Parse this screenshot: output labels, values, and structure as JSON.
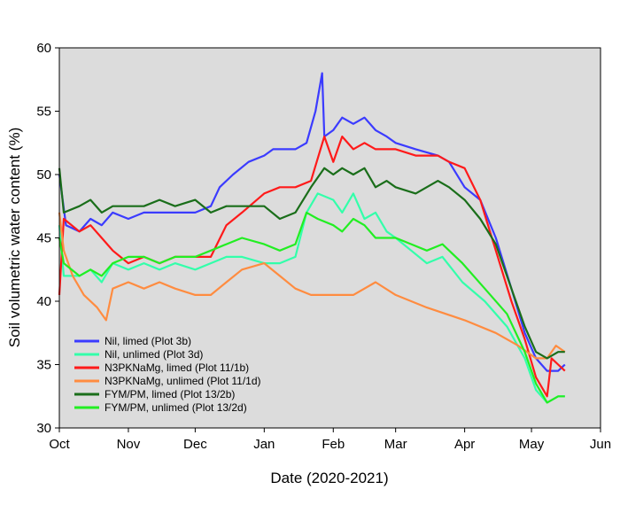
{
  "chart_data": {
    "type": "line",
    "title": "",
    "xlabel": "Date (2020-2021)",
    "ylabel": "Soil volumetric water content (%)",
    "ylim": [
      30,
      60
    ],
    "yticks": [
      "30",
      "35",
      "40",
      "45",
      "50",
      "55",
      "60"
    ],
    "xlim": [
      "2020-10-01",
      "2021-06-01"
    ],
    "xticks": [
      "Oct",
      "Nov",
      "Dec",
      "Jan",
      "Feb",
      "Mar",
      "Apr",
      "May",
      "Jun"
    ],
    "xtick_dates": [
      "2020-10-01",
      "2020-11-01",
      "2020-12-01",
      "2021-01-01",
      "2021-02-01",
      "2021-03-01",
      "2021-04-01",
      "2021-05-01",
      "2021-06-01"
    ],
    "grid": false,
    "background": "#dcdcdc",
    "legend_position": "bottom-left",
    "series": [
      {
        "name": "Nil, limed (Plot 3b)",
        "color": "#3b3bff",
        "points": [
          [
            "2020-10-01",
            50.0
          ],
          [
            "2020-10-04",
            46.0
          ],
          [
            "2020-10-10",
            45.5
          ],
          [
            "2020-10-15",
            46.5
          ],
          [
            "2020-10-20",
            46.0
          ],
          [
            "2020-10-25",
            47.0
          ],
          [
            "2020-11-01",
            46.5
          ],
          [
            "2020-11-08",
            47.0
          ],
          [
            "2020-11-15",
            47.0
          ],
          [
            "2020-11-22",
            47.0
          ],
          [
            "2020-12-01",
            47.0
          ],
          [
            "2020-12-08",
            47.5
          ],
          [
            "2020-12-12",
            49.0
          ],
          [
            "2020-12-18",
            50.0
          ],
          [
            "2020-12-25",
            51.0
          ],
          [
            "2021-01-01",
            51.5
          ],
          [
            "2021-01-05",
            52.0
          ],
          [
            "2021-01-10",
            52.0
          ],
          [
            "2021-01-15",
            52.0
          ],
          [
            "2021-01-20",
            52.5
          ],
          [
            "2021-01-24",
            55.0
          ],
          [
            "2021-01-27",
            58.0
          ],
          [
            "2021-01-28",
            53.0
          ],
          [
            "2021-02-01",
            53.5
          ],
          [
            "2021-02-05",
            54.5
          ],
          [
            "2021-02-10",
            54.0
          ],
          [
            "2021-02-15",
            54.5
          ],
          [
            "2021-02-20",
            53.5
          ],
          [
            "2021-02-25",
            53.0
          ],
          [
            "2021-03-01",
            52.5
          ],
          [
            "2021-03-10",
            52.0
          ],
          [
            "2021-03-20",
            51.5
          ],
          [
            "2021-03-25",
            51.0
          ],
          [
            "2021-04-01",
            49.0
          ],
          [
            "2021-04-08",
            48.0
          ],
          [
            "2021-04-15",
            45.0
          ],
          [
            "2021-04-22",
            41.0
          ],
          [
            "2021-04-28",
            37.5
          ],
          [
            "2021-05-03",
            35.5
          ],
          [
            "2021-05-08",
            34.5
          ],
          [
            "2021-05-13",
            34.5
          ],
          [
            "2021-05-16",
            35.0
          ]
        ]
      },
      {
        "name": "Nil, unlimed (Plot 3d)",
        "color": "#33ffaa",
        "points": [
          [
            "2020-10-01",
            46.0
          ],
          [
            "2020-10-03",
            42.0
          ],
          [
            "2020-10-10",
            42.0
          ],
          [
            "2020-10-15",
            42.5
          ],
          [
            "2020-10-20",
            41.5
          ],
          [
            "2020-10-25",
            43.0
          ],
          [
            "2020-11-01",
            42.5
          ],
          [
            "2020-11-08",
            43.0
          ],
          [
            "2020-11-15",
            42.5
          ],
          [
            "2020-11-22",
            43.0
          ],
          [
            "2020-12-01",
            42.5
          ],
          [
            "2020-12-08",
            43.0
          ],
          [
            "2020-12-15",
            43.5
          ],
          [
            "2020-12-22",
            43.5
          ],
          [
            "2021-01-01",
            43.0
          ],
          [
            "2021-01-08",
            43.0
          ],
          [
            "2021-01-15",
            43.5
          ],
          [
            "2021-01-20",
            47.0
          ],
          [
            "2021-01-25",
            48.5
          ],
          [
            "2021-02-01",
            48.0
          ],
          [
            "2021-02-05",
            47.0
          ],
          [
            "2021-02-10",
            48.5
          ],
          [
            "2021-02-15",
            46.5
          ],
          [
            "2021-02-20",
            47.0
          ],
          [
            "2021-02-25",
            45.5
          ],
          [
            "2021-03-01",
            45.0
          ],
          [
            "2021-03-08",
            44.0
          ],
          [
            "2021-03-15",
            43.0
          ],
          [
            "2021-03-22",
            43.5
          ],
          [
            "2021-03-31",
            41.5
          ],
          [
            "2021-04-10",
            40.0
          ],
          [
            "2021-04-20",
            38.0
          ],
          [
            "2021-04-28",
            35.5
          ],
          [
            "2021-05-03",
            33.0
          ],
          [
            "2021-05-08",
            32.0
          ],
          [
            "2021-05-13",
            32.5
          ],
          [
            "2021-05-16",
            32.5
          ]
        ]
      },
      {
        "name": "N3PKNaMg, limed (Plot 11/1b)",
        "color": "#ff1a1a",
        "points": [
          [
            "2020-10-01",
            40.5
          ],
          [
            "2020-10-03",
            46.5
          ],
          [
            "2020-10-10",
            45.5
          ],
          [
            "2020-10-15",
            46.0
          ],
          [
            "2020-10-20",
            45.0
          ],
          [
            "2020-10-25",
            44.0
          ],
          [
            "2020-11-01",
            43.0
          ],
          [
            "2020-11-08",
            43.5
          ],
          [
            "2020-11-15",
            43.0
          ],
          [
            "2020-11-22",
            43.5
          ],
          [
            "2020-12-01",
            43.5
          ],
          [
            "2020-12-08",
            43.5
          ],
          [
            "2020-12-15",
            46.0
          ],
          [
            "2020-12-22",
            47.0
          ],
          [
            "2021-01-01",
            48.5
          ],
          [
            "2021-01-08",
            49.0
          ],
          [
            "2021-01-15",
            49.0
          ],
          [
            "2021-01-22",
            49.5
          ],
          [
            "2021-01-28",
            53.0
          ],
          [
            "2021-02-01",
            51.0
          ],
          [
            "2021-02-05",
            53.0
          ],
          [
            "2021-02-10",
            52.0
          ],
          [
            "2021-02-15",
            52.5
          ],
          [
            "2021-02-20",
            52.0
          ],
          [
            "2021-02-25",
            52.0
          ],
          [
            "2021-03-01",
            52.0
          ],
          [
            "2021-03-10",
            51.5
          ],
          [
            "2021-03-20",
            51.5
          ],
          [
            "2021-03-25",
            51.0
          ],
          [
            "2021-04-01",
            50.5
          ],
          [
            "2021-04-08",
            48.0
          ],
          [
            "2021-04-15",
            44.0
          ],
          [
            "2021-04-22",
            40.0
          ],
          [
            "2021-04-28",
            37.0
          ],
          [
            "2021-05-03",
            34.0
          ],
          [
            "2021-05-08",
            32.5
          ],
          [
            "2021-05-10",
            35.5
          ],
          [
            "2021-05-13",
            35.0
          ],
          [
            "2021-05-16",
            34.5
          ]
        ]
      },
      {
        "name": "N3PKNaMg, unlimed (Plot 11/1d)",
        "color": "#ff8c40",
        "points": [
          [
            "2020-10-01",
            47.0
          ],
          [
            "2020-10-03",
            44.0
          ],
          [
            "2020-10-07",
            42.0
          ],
          [
            "2020-10-12",
            40.5
          ],
          [
            "2020-10-18",
            39.5
          ],
          [
            "2020-10-22",
            38.5
          ],
          [
            "2020-10-25",
            41.0
          ],
          [
            "2020-11-01",
            41.5
          ],
          [
            "2020-11-08",
            41.0
          ],
          [
            "2020-11-15",
            41.5
          ],
          [
            "2020-11-22",
            41.0
          ],
          [
            "2020-12-01",
            40.5
          ],
          [
            "2020-12-08",
            40.5
          ],
          [
            "2020-12-15",
            41.5
          ],
          [
            "2020-12-22",
            42.5
          ],
          [
            "2021-01-01",
            43.0
          ],
          [
            "2021-01-08",
            42.0
          ],
          [
            "2021-01-15",
            41.0
          ],
          [
            "2021-01-22",
            40.5
          ],
          [
            "2021-02-01",
            40.5
          ],
          [
            "2021-02-10",
            40.5
          ],
          [
            "2021-02-20",
            41.5
          ],
          [
            "2021-03-01",
            40.5
          ],
          [
            "2021-03-15",
            39.5
          ],
          [
            "2021-04-01",
            38.5
          ],
          [
            "2021-04-15",
            37.5
          ],
          [
            "2021-04-25",
            36.5
          ],
          [
            "2021-05-03",
            35.5
          ],
          [
            "2021-05-08",
            35.5
          ],
          [
            "2021-05-12",
            36.5
          ],
          [
            "2021-05-16",
            36.0
          ]
        ]
      },
      {
        "name": "FYM/PM, limed (Plot 13/2b)",
        "color": "#1a6e1a",
        "points": [
          [
            "2020-10-01",
            50.5
          ],
          [
            "2020-10-03",
            47.0
          ],
          [
            "2020-10-10",
            47.5
          ],
          [
            "2020-10-15",
            48.0
          ],
          [
            "2020-10-20",
            47.0
          ],
          [
            "2020-10-25",
            47.5
          ],
          [
            "2020-11-01",
            47.5
          ],
          [
            "2020-11-08",
            47.5
          ],
          [
            "2020-11-15",
            48.0
          ],
          [
            "2020-11-22",
            47.5
          ],
          [
            "2020-12-01",
            48.0
          ],
          [
            "2020-12-08",
            47.0
          ],
          [
            "2020-12-15",
            47.5
          ],
          [
            "2020-12-22",
            47.5
          ],
          [
            "2021-01-01",
            47.5
          ],
          [
            "2021-01-08",
            46.5
          ],
          [
            "2021-01-15",
            47.0
          ],
          [
            "2021-01-22",
            49.0
          ],
          [
            "2021-01-28",
            50.5
          ],
          [
            "2021-02-01",
            50.0
          ],
          [
            "2021-02-05",
            50.5
          ],
          [
            "2021-02-10",
            50.0
          ],
          [
            "2021-02-15",
            50.5
          ],
          [
            "2021-02-20",
            49.0
          ],
          [
            "2021-02-25",
            49.5
          ],
          [
            "2021-03-01",
            49.0
          ],
          [
            "2021-03-10",
            48.5
          ],
          [
            "2021-03-20",
            49.5
          ],
          [
            "2021-03-25",
            49.0
          ],
          [
            "2021-04-01",
            48.0
          ],
          [
            "2021-04-08",
            46.5
          ],
          [
            "2021-04-15",
            44.5
          ],
          [
            "2021-04-22",
            41.0
          ],
          [
            "2021-04-28",
            38.0
          ],
          [
            "2021-05-03",
            36.0
          ],
          [
            "2021-05-08",
            35.5
          ],
          [
            "2021-05-13",
            36.0
          ],
          [
            "2021-05-16",
            36.0
          ]
        ]
      },
      {
        "name": "FYM/PM, unlimed (Plot 13/2d)",
        "color": "#22ee22",
        "points": [
          [
            "2020-10-01",
            45.0
          ],
          [
            "2020-10-03",
            43.0
          ],
          [
            "2020-10-10",
            42.0
          ],
          [
            "2020-10-15",
            42.5
          ],
          [
            "2020-10-20",
            42.0
          ],
          [
            "2020-10-25",
            43.0
          ],
          [
            "2020-11-01",
            43.5
          ],
          [
            "2020-11-08",
            43.5
          ],
          [
            "2020-11-15",
            43.0
          ],
          [
            "2020-11-22",
            43.5
          ],
          [
            "2020-12-01",
            43.5
          ],
          [
            "2020-12-08",
            44.0
          ],
          [
            "2020-12-15",
            44.5
          ],
          [
            "2020-12-22",
            45.0
          ],
          [
            "2021-01-01",
            44.5
          ],
          [
            "2021-01-08",
            44.0
          ],
          [
            "2021-01-15",
            44.5
          ],
          [
            "2021-01-20",
            47.0
          ],
          [
            "2021-01-25",
            46.5
          ],
          [
            "2021-02-01",
            46.0
          ],
          [
            "2021-02-05",
            45.5
          ],
          [
            "2021-02-10",
            46.5
          ],
          [
            "2021-02-15",
            46.0
          ],
          [
            "2021-02-20",
            45.0
          ],
          [
            "2021-02-25",
            45.0
          ],
          [
            "2021-03-01",
            45.0
          ],
          [
            "2021-03-08",
            44.5
          ],
          [
            "2021-03-15",
            44.0
          ],
          [
            "2021-03-22",
            44.5
          ],
          [
            "2021-03-31",
            43.0
          ],
          [
            "2021-04-10",
            41.0
          ],
          [
            "2021-04-20",
            39.0
          ],
          [
            "2021-04-28",
            36.0
          ],
          [
            "2021-05-03",
            33.5
          ],
          [
            "2021-05-08",
            32.0
          ],
          [
            "2021-05-13",
            32.5
          ],
          [
            "2021-05-16",
            32.5
          ]
        ]
      }
    ]
  }
}
